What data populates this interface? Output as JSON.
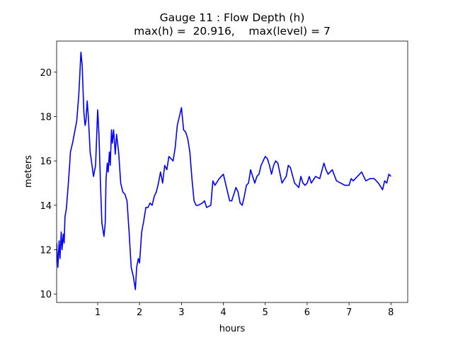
{
  "chart_data": {
    "type": "line",
    "title": [
      "Gauge 11 : Flow Depth (h)",
      "max(h) =  20.916,    max(level) = 7"
    ],
    "xlabel": "hours",
    "ylabel": "meters",
    "xlim": [
      0.02,
      8.4
    ],
    "ylim": [
      9.62,
      21.4
    ],
    "xticks": [
      1,
      2,
      3,
      4,
      5,
      6,
      7,
      8
    ],
    "yticks": [
      10,
      12,
      14,
      16,
      18,
      20
    ],
    "grid": false,
    "x": [
      0.02,
      0.05,
      0.08,
      0.1,
      0.13,
      0.15,
      0.18,
      0.2,
      0.22,
      0.25,
      0.28,
      0.3,
      0.33,
      0.35,
      0.4,
      0.45,
      0.5,
      0.55,
      0.6,
      0.63,
      0.67,
      0.7,
      0.72,
      0.75,
      0.78,
      0.82,
      0.85,
      0.9,
      0.95,
      1.0,
      1.03,
      1.07,
      1.1,
      1.15,
      1.18,
      1.2,
      1.23,
      1.25,
      1.28,
      1.3,
      1.33,
      1.35,
      1.38,
      1.42,
      1.45,
      1.5,
      1.55,
      1.6,
      1.65,
      1.7,
      1.75,
      1.8,
      1.85,
      1.9,
      1.93,
      1.97,
      2.0,
      2.05,
      2.1,
      2.15,
      2.2,
      2.25,
      2.3,
      2.35,
      2.4,
      2.45,
      2.5,
      2.55,
      2.6,
      2.65,
      2.7,
      2.75,
      2.8,
      2.85,
      2.9,
      2.95,
      3.0,
      3.05,
      3.1,
      3.15,
      3.2,
      3.25,
      3.3,
      3.35,
      3.4,
      3.5,
      3.55,
      3.6,
      3.7,
      3.75,
      3.8,
      3.9,
      4.0,
      4.05,
      4.1,
      4.15,
      4.2,
      4.3,
      4.35,
      4.4,
      4.45,
      4.5,
      4.55,
      4.6,
      4.65,
      4.7,
      4.75,
      4.8,
      4.85,
      4.9,
      5.0,
      5.05,
      5.1,
      5.15,
      5.2,
      5.25,
      5.3,
      5.4,
      5.5,
      5.55,
      5.6,
      5.7,
      5.8,
      5.85,
      5.9,
      5.95,
      6.0,
      6.05,
      6.1,
      6.2,
      6.3,
      6.4,
      6.45,
      6.5,
      6.6,
      6.7,
      6.8,
      6.9,
      7.0,
      7.05,
      7.1,
      7.2,
      7.3,
      7.4,
      7.5,
      7.6,
      7.7,
      7.8,
      7.85,
      7.9,
      7.95,
      8.0
    ],
    "series": [
      {
        "color": "#0000ff",
        "values": [
          12.3,
          11.2,
          12.4,
          11.6,
          12.8,
          12.0,
          12.7,
          12.3,
          13.5,
          13.8,
          14.5,
          15.0,
          15.8,
          16.4,
          16.8,
          17.3,
          17.8,
          19.0,
          20.9,
          20.3,
          18.2,
          17.6,
          17.8,
          18.7,
          17.9,
          16.4,
          16.0,
          15.3,
          15.8,
          18.3,
          17.2,
          14.8,
          13.2,
          12.6,
          13.2,
          15.2,
          15.9,
          15.5,
          16.4,
          15.8,
          17.4,
          16.8,
          17.4,
          16.3,
          17.2,
          16.4,
          15.0,
          14.6,
          14.5,
          14.2,
          12.8,
          11.2,
          10.8,
          10.2,
          11.2,
          11.6,
          11.4,
          12.8,
          13.3,
          13.9,
          13.9,
          14.1,
          14.0,
          14.4,
          14.6,
          15.0,
          15.5,
          15.0,
          15.8,
          15.6,
          16.2,
          16.1,
          16.0,
          16.6,
          17.6,
          18.0,
          18.4,
          17.4,
          17.3,
          17.0,
          16.4,
          15.2,
          14.2,
          14.0,
          14.0,
          14.1,
          14.2,
          13.9,
          14.0,
          15.1,
          14.9,
          15.2,
          15.4,
          15.0,
          14.6,
          14.2,
          14.2,
          14.8,
          14.6,
          14.1,
          14.0,
          14.4,
          14.9,
          15.0,
          15.6,
          15.3,
          15.0,
          15.3,
          15.4,
          15.8,
          16.2,
          16.1,
          15.8,
          15.4,
          15.8,
          16.0,
          15.9,
          15.0,
          15.3,
          15.8,
          15.7,
          15.0,
          14.8,
          15.3,
          15.0,
          14.9,
          15.0,
          15.3,
          15.0,
          15.3,
          15.2,
          15.9,
          15.6,
          15.4,
          15.6,
          15.1,
          15.0,
          14.9,
          14.9,
          15.2,
          15.1,
          15.3,
          15.5,
          15.1,
          15.2,
          15.2,
          15.0,
          14.7,
          15.1,
          15.0,
          15.4,
          15.3
        ]
      }
    ]
  }
}
